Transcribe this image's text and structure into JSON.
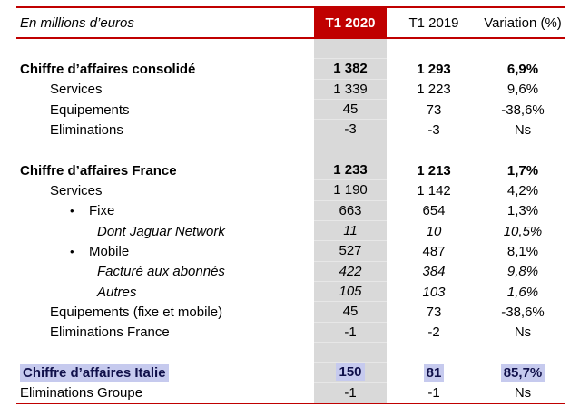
{
  "table": {
    "unit_label": "En millions d’euros",
    "columns": {
      "t1_2020": "T1 2020",
      "t1_2019": "T1 2019",
      "variation": "Variation (%)"
    },
    "rows": [
      {
        "spacer": true
      },
      {
        "label": "Chiffre d’affaires consolidé",
        "indent": 0,
        "bold": true,
        "t1_2020": "1 382",
        "t1_2019": "1 293",
        "variation": "6,9%"
      },
      {
        "label": "Services",
        "indent": 1,
        "t1_2020": "1 339",
        "t1_2019": "1 223",
        "variation": "9,6%"
      },
      {
        "label": "Equipements",
        "indent": 1,
        "t1_2020": "45",
        "t1_2019": "73",
        "variation": "-38,6%"
      },
      {
        "label": "Eliminations",
        "indent": 1,
        "t1_2020": "-3",
        "t1_2019": "-3",
        "variation": "Ns"
      },
      {
        "spacer": true
      },
      {
        "label": "Chiffre d’affaires France",
        "indent": 0,
        "bold": true,
        "t1_2020": "1 233",
        "t1_2019": "1 213",
        "variation": "1,7%"
      },
      {
        "label": "Services",
        "indent": 1,
        "t1_2020": "1 190",
        "t1_2019": "1 142",
        "variation": "4,2%"
      },
      {
        "label": "Fixe",
        "indent": 2,
        "bullet": true,
        "t1_2020": "663",
        "t1_2019": "654",
        "variation": "1,3%"
      },
      {
        "label": "Dont Jaguar Network",
        "indent": 3,
        "italic": true,
        "t1_2020": "11",
        "t1_2019": "10",
        "variation": "10,5%"
      },
      {
        "label": "Mobile",
        "indent": 2,
        "bullet": true,
        "t1_2020": "527",
        "t1_2019": "487",
        "variation": "8,1%"
      },
      {
        "label": "Facturé aux abonnés",
        "indent": 3,
        "italic": true,
        "t1_2020": "422",
        "t1_2019": "384",
        "variation": "9,8%"
      },
      {
        "label": "Autres",
        "indent": 3,
        "italic": true,
        "t1_2020": "105",
        "t1_2019": "103",
        "variation": "1,6%"
      },
      {
        "label": "Equipements (fixe et mobile)",
        "indent": 1,
        "t1_2020": "45",
        "t1_2019": "73",
        "variation": "-38,6%"
      },
      {
        "label": "Eliminations France",
        "indent": 1,
        "t1_2020": "-1",
        "t1_2019": "-2",
        "variation": "Ns"
      },
      {
        "spacer": true
      },
      {
        "label": "Chiffre d’affaires Italie",
        "indent": 0,
        "bold": true,
        "highlight": true,
        "t1_2020": "150",
        "t1_2019": "81",
        "variation": "85,7%"
      },
      {
        "label": "Eliminations Groupe",
        "indent": 0,
        "t1_2020": "-1",
        "t1_2019": "-1",
        "variation": "Ns"
      }
    ]
  },
  "icons": {
    "bullet": "•"
  },
  "colors": {
    "accent_red": "#C00000",
    "column_shade": "#D9D9D9",
    "highlight": "#C6CAEE",
    "highlight_text": "#10104A"
  }
}
